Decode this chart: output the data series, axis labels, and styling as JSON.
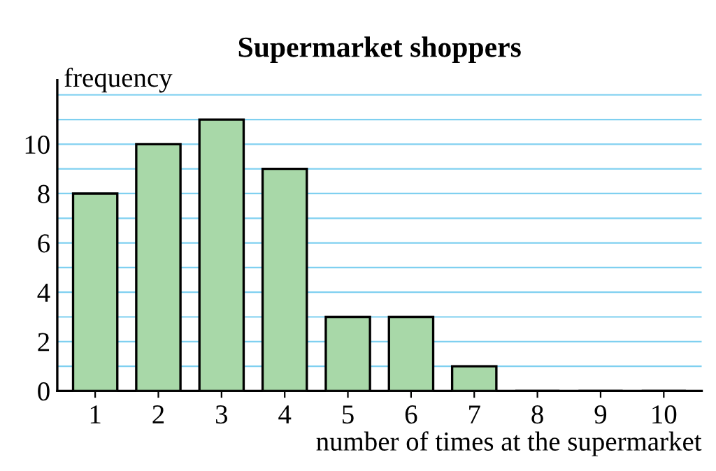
{
  "chart_data": {
    "type": "bar",
    "title": "Supermarket shoppers",
    "xlabel": "number of times at the supermarket",
    "ylabel": "frequency",
    "categories": [
      "1",
      "2",
      "3",
      "4",
      "5",
      "6",
      "7",
      "8",
      "9",
      "10"
    ],
    "values": [
      8,
      10,
      11,
      9,
      3,
      3,
      1,
      0,
      0,
      0
    ],
    "color": "#a8d8a8",
    "ylim": [
      0,
      12.6
    ],
    "yticks": [
      0,
      {
        "value": 1,
        "label": null
      },
      2,
      {
        "value": 3,
        "label": null
      },
      4,
      {
        "value": 5,
        "label": null
      },
      6,
      {
        "value": 7,
        "label": null
      },
      8,
      {
        "value": 9,
        "label": null
      },
      10,
      {
        "value": 11,
        "label": null
      },
      {
        "value": 12,
        "label": null
      }
    ],
    "grid": "y"
  }
}
